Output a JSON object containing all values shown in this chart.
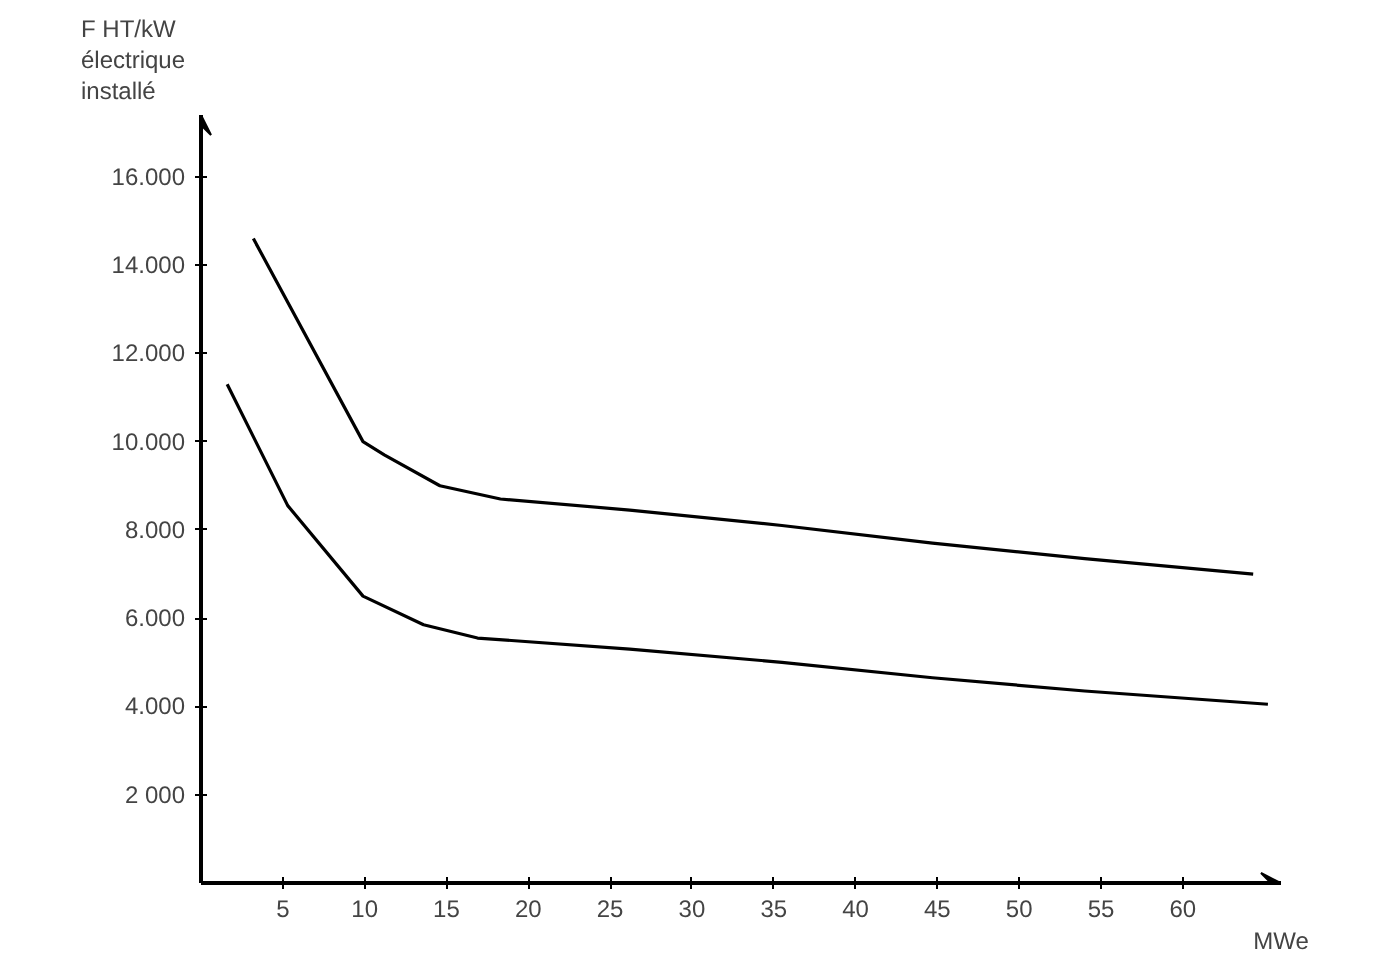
{
  "chart_data": {
    "type": "line",
    "ylabel": "F HT/kW\nélectrique\ninstallé",
    "xlabel": "MWe",
    "series": [
      {
        "color": "#000000",
        "x": [
          3.2,
          9.9,
          11.2,
          14.6,
          18.3,
          26.2,
          35.5,
          44.7,
          54.0,
          64.3
        ],
        "values": [
          14600,
          10000,
          9700,
          9000,
          8700,
          8450,
          8100,
          7700,
          7350,
          7000
        ]
      },
      {
        "color": "#000000",
        "x": [
          1.6,
          5.3,
          9.9,
          13.6,
          16.9,
          26.2,
          35.5,
          44.7,
          54.0,
          65.2
        ],
        "values": [
          11300,
          8550,
          6500,
          5850,
          5550,
          5300,
          5000,
          4650,
          4350,
          4050
        ]
      }
    ],
    "xlim": [
      0,
      66
    ],
    "ylim": [
      0,
      17400
    ],
    "xticks": [
      5,
      10,
      15,
      20,
      25,
      30,
      35,
      40,
      45,
      50,
      55,
      60
    ],
    "yticks": [
      {
        "value": 2000,
        "label": "2 000"
      },
      {
        "value": 4000,
        "label": "4.000"
      },
      {
        "value": 6000,
        "label": "6.000"
      },
      {
        "value": 8000,
        "label": "8.000"
      },
      {
        "value": 10000,
        "label": "10.000"
      },
      {
        "value": 12000,
        "label": "12.000"
      },
      {
        "value": 14000,
        "label": "14.000"
      },
      {
        "value": 16000,
        "label": "16.000"
      }
    ],
    "grid": false,
    "marker": "none",
    "line_style": "solid"
  }
}
